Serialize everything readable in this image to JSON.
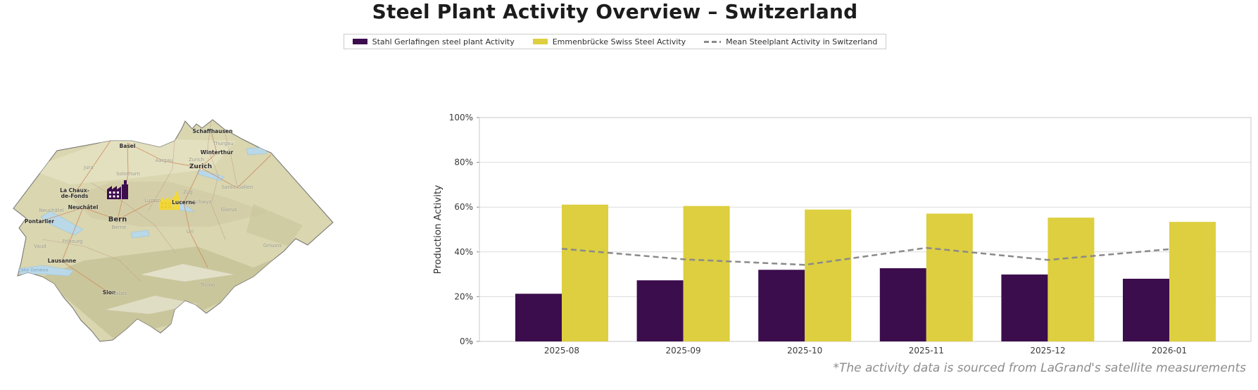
{
  "header": {
    "title": "Steel Plant Activity Overview – Switzerland"
  },
  "legend": {
    "items": [
      {
        "label": "Stahl Gerlafingen steel plant Activity",
        "swatch": "solid",
        "color": "#3c0d4d"
      },
      {
        "label": "Emmenbrücke Swiss Steel Activity",
        "swatch": "solid",
        "color": "#ddcf3f"
      },
      {
        "label": "Mean Steelplant Activity in Switzerland",
        "swatch": "dashed-line",
        "color": "#8a8a8a"
      }
    ]
  },
  "chart_data": {
    "type": "bar",
    "title": "",
    "xlabel": "",
    "ylabel": "Production Activity",
    "ylim": [
      0,
      100
    ],
    "yticks": [
      "0%",
      "20%",
      "40%",
      "60%",
      "80%",
      "100%"
    ],
    "grid": true,
    "legend_position": "top-center",
    "categories": [
      "2025-08",
      "2025-09",
      "2025-10",
      "2025-11",
      "2025-12",
      "2026-01"
    ],
    "series": [
      {
        "name": "Stahl Gerlafingen steel plant Activity",
        "type": "bar",
        "color": "#3c0d4d",
        "values": [
          21.3,
          27.3,
          32.0,
          32.7,
          29.9,
          28.0
        ]
      },
      {
        "name": "Emmenbrücke Swiss Steel Activity",
        "type": "bar",
        "color": "#ddcf3f",
        "values": [
          61.1,
          60.5,
          58.9,
          57.1,
          55.3,
          53.4
        ]
      },
      {
        "name": "Mean Steelplant Activity in Switzerland",
        "type": "line",
        "style": "dashed",
        "color": "#8a8a8a",
        "values": [
          41.4,
          36.7,
          34.2,
          41.8,
          36.4,
          41.2
        ]
      }
    ],
    "units": "%"
  },
  "map": {
    "region": "Switzerland",
    "markers": [
      {
        "name": "Stahl Gerlafingen steel plant",
        "color": "#3c0d4d"
      },
      {
        "name": "Emmenbrücke Swiss Steel plant",
        "color": "#f2d83c"
      }
    ],
    "city_labels": [
      {
        "text": "Basel"
      },
      {
        "text": "Schaffhausen"
      },
      {
        "text": "Winterthur"
      },
      {
        "text": "Zurich"
      },
      {
        "text": "Lucerne"
      },
      {
        "text": "Bern"
      },
      {
        "text": "Neuchâtel"
      },
      {
        "text": "La Chaux-\nde-Fonds"
      },
      {
        "text": "Pontarlier"
      },
      {
        "text": "Lausanne"
      },
      {
        "text": "Sion"
      }
    ],
    "region_labels": [
      {
        "text": "Jura"
      },
      {
        "text": "Aargau"
      },
      {
        "text": "Solothurn"
      },
      {
        "text": "Thurgau"
      },
      {
        "text": "Zurich"
      },
      {
        "text": "Sankt Gallen"
      },
      {
        "text": "Zug"
      },
      {
        "text": "Schwyz"
      },
      {
        "text": "Glarus"
      },
      {
        "text": "Uri"
      },
      {
        "text": "Grisons"
      },
      {
        "text": "Berne"
      },
      {
        "text": "Fribourg"
      },
      {
        "text": "Neuchâtel"
      },
      {
        "text": "Vaud"
      },
      {
        "text": "Valais"
      },
      {
        "text": "Luzern"
      },
      {
        "text": "Ticino"
      }
    ],
    "water_labels": [
      {
        "text": "Lake Geneva"
      }
    ]
  },
  "footer": {
    "note": "*The activity data is sourced from LaGrand's satellite measurements"
  }
}
